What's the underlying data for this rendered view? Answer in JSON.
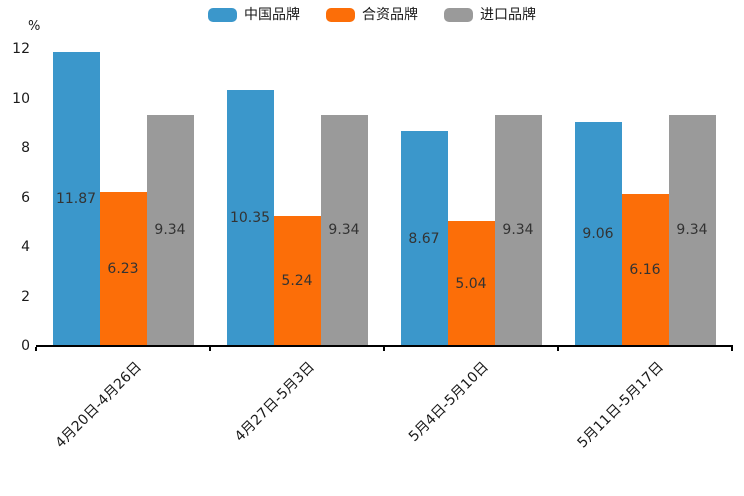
{
  "chart_data": {
    "type": "bar",
    "title": "",
    "xlabel": "",
    "ylabel": "%",
    "categories": [
      "4月20日-4月26日",
      "4月27日-5月3日",
      "5月4日-5月10日",
      "5月11日-5月17日"
    ],
    "series": [
      {
        "name": "中国品牌",
        "color": "#3B97CB",
        "values": [
          11.87,
          10.35,
          8.67,
          9.06
        ]
      },
      {
        "name": "合资品牌",
        "color": "#FC6E08",
        "values": [
          6.23,
          5.24,
          5.04,
          6.16
        ]
      },
      {
        "name": "进口品牌",
        "color": "#9A9A9A",
        "values": [
          9.34,
          9.34,
          9.34,
          9.34
        ]
      }
    ],
    "yticks": [
      0,
      2,
      4,
      6,
      8,
      10,
      12
    ],
    "ylim": [
      0,
      12
    ],
    "grid": false,
    "legend_position": "top",
    "value_labels_shown": true,
    "value_label_decimals": 2,
    "value_label_color": "#333333",
    "axis_color": "#000000",
    "background_color": "#FFFFFF"
  }
}
